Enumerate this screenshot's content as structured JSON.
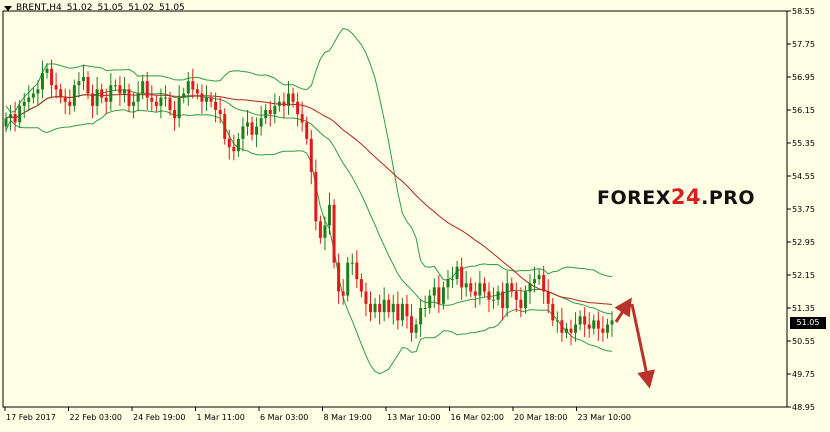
{
  "header": {
    "symbol": "BRENT,H4",
    "open": "51.02",
    "high": "51.05",
    "low": "51.02",
    "close": "51.05"
  },
  "watermark": {
    "prefix": "FOREX",
    "accent": "24",
    "suffix": ".PRO"
  },
  "current_price_label": "51.05",
  "colors": {
    "background": "#ffffe6",
    "bull": "#1e7d1e",
    "bear": "#e01a1a",
    "bollinger": "#2f9b4b",
    "ma": "#b22222",
    "arrow": "#b8332b"
  },
  "chart_data": {
    "type": "candlestick",
    "symbol": "BRENT",
    "timeframe": "H4",
    "ylim": [
      48.95,
      58.55
    ],
    "y_ticks": [
      "58.55",
      "57.75",
      "56.95",
      "56.15",
      "55.35",
      "54.55",
      "53.75",
      "52.95",
      "52.15",
      "51.35",
      "50.55",
      "49.75",
      "48.95"
    ],
    "x_ticks": [
      "17 Feb 2017",
      "22 Feb 03:00",
      "24 Feb 19:00",
      "1 Mar 11:00",
      "6 Mar 03:00",
      "8 Mar 19:00",
      "13 Mar 10:00",
      "16 Mar 02:00",
      "20 Mar 18:00",
      "23 Mar 10:00"
    ],
    "close": [
      55.95,
      56.05,
      55.85,
      56.25,
      56.35,
      56.45,
      56.55,
      56.65,
      57.05,
      57.15,
      56.75,
      56.65,
      56.45,
      56.35,
      56.25,
      56.75,
      56.85,
      56.95,
      56.55,
      56.25,
      56.65,
      56.45,
      56.35,
      56.75,
      56.75,
      56.55,
      56.65,
      56.25,
      56.35,
      56.55,
      56.85,
      56.45,
      56.35,
      56.25,
      56.45,
      56.45,
      56.15,
      55.95,
      56.45,
      56.55,
      56.85,
      56.65,
      56.55,
      56.35,
      56.45,
      56.35,
      56.15,
      56.05,
      55.45,
      55.25,
      55.15,
      55.45,
      55.75,
      55.85,
      55.55,
      55.75,
      55.95,
      56.15,
      56.05,
      56.25,
      56.35,
      56.25,
      56.55,
      56.35,
      56.05,
      55.85,
      55.45,
      54.65,
      53.45,
      53.05,
      53.35,
      53.85,
      52.45,
      51.75,
      51.65,
      52.45,
      52.45,
      52.05,
      51.75,
      51.45,
      51.25,
      51.45,
      51.25,
      51.55,
      51.25,
      51.45,
      51.05,
      51.45,
      51.15,
      50.75,
      50.95,
      51.35,
      51.35,
      51.65,
      51.85,
      51.45,
      51.85,
      52.05,
      52.05,
      52.35,
      51.85,
      51.95,
      51.75,
      51.65,
      51.95,
      51.75,
      51.55,
      51.55,
      51.75,
      51.35,
      51.95,
      51.75,
      51.55,
      51.35,
      51.75,
      51.95,
      52.05,
      52.15,
      51.75,
      51.45,
      51.05,
      51.05,
      50.75,
      50.85,
      50.75,
      50.95,
      51.15,
      50.95,
      50.85,
      51.05,
      50.85,
      50.75,
      50.95,
      51.05
    ],
    "series": [
      {
        "type": "bollinger_bands"
      },
      {
        "type": "moving_average"
      }
    ],
    "annotations": [
      "arrow up",
      "arrow down"
    ]
  }
}
